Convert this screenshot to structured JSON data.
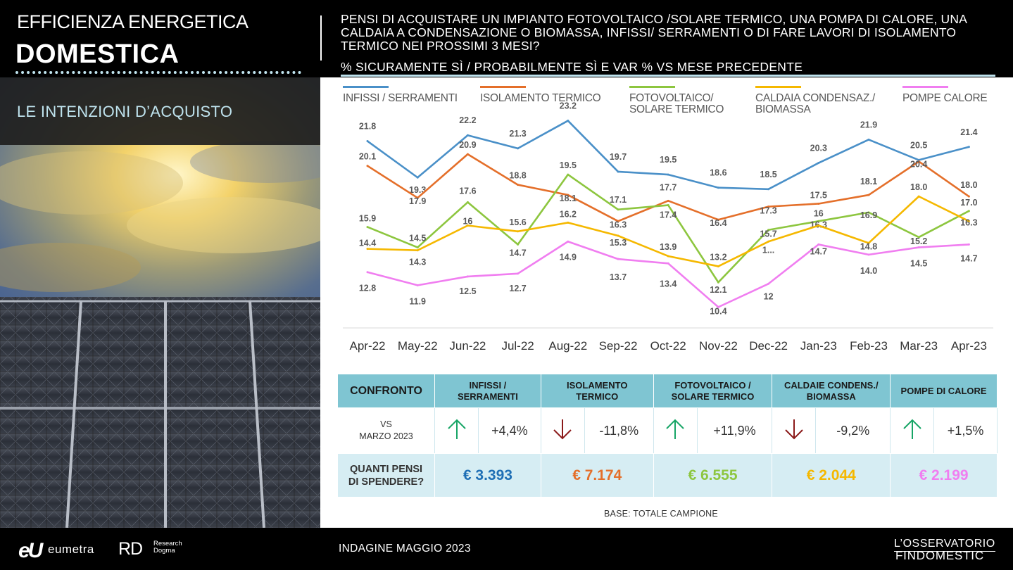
{
  "header": {
    "title_line1": "EFFICIENZA ENERGETICA",
    "title_line2": "DOMESTICA",
    "question": "PENSI DI ACQUISTARE  UN IMPIANTO  FOTOVOLTAICO  /SOLARE TERMICO,  UNA POMPA DI CALORE, UNA CALDAIA  A CONDENSAZIONE  O BIOMASSA,  INFISSI/  SERRAMENTI  O DI FARE LAVORI DI ISOLAMENTO  TERMICO  NEI PROSSIMI  3 MESI?",
    "subtitle": "% SICURAMENTE SÌ / PROBABILMENTE SÌ E VAR % VS MESE PRECEDENTE"
  },
  "section_label": "LE INTENZIONI D’ACQUISTO",
  "colors": {
    "infissi": "#4a90c8",
    "isolamento": "#e46f2a",
    "fotovoltaico": "#8dc63f",
    "caldaia": "#f5b800",
    "pompe": "#f07ef0",
    "arrow_up": "#17a566",
    "arrow_down": "#8b1a1a",
    "header_blue": "#7fc5d2"
  },
  "chart_data": {
    "type": "line",
    "categories": [
      "Apr-22",
      "May-22",
      "Jun-22",
      "Jul-22",
      "Aug-22",
      "Sep-22",
      "Oct-22",
      "Nov-22",
      "Dec-22",
      "Jan-23",
      "Feb-23",
      "Mar-23",
      "Apr-23"
    ],
    "series": [
      {
        "key": "infissi",
        "name": "INFISSI / SERRAMENTI",
        "values": [
          21.8,
          19.3,
          22.2,
          21.3,
          23.2,
          19.7,
          19.5,
          18.6,
          18.5,
          20.3,
          21.9,
          20.5,
          21.4
        ],
        "labels": [
          "21.8",
          "19.3",
          "22.2",
          "21.3",
          "23.2",
          "19.7",
          "19.5",
          "18.6",
          "18.5",
          "20.3",
          "21.9",
          "20.5",
          "21.4"
        ]
      },
      {
        "key": "isolamento",
        "name": "ISOLAMENTO TERMICO",
        "values": [
          20.1,
          17.9,
          20.9,
          18.8,
          18.1,
          16.3,
          17.7,
          16.4,
          17.3,
          17.5,
          18.1,
          20.4,
          18.0
        ],
        "labels": [
          "20.1",
          "17.9",
          "20.9",
          "18.8",
          "18.1",
          "16.3",
          "17.7",
          "16.4",
          "17.3",
          "17.5",
          "18.1",
          "20.4",
          "18.0"
        ]
      },
      {
        "key": "fotovoltaico",
        "name": "FOTOVOLTAICO/ SOLARE TERMICO",
        "values": [
          15.9,
          14.5,
          17.6,
          14.7,
          19.5,
          17.1,
          17.4,
          12.1,
          15.7,
          16.3,
          16.9,
          15.2,
          17.0
        ],
        "labels": [
          "15.9",
          "14.5",
          "17.6",
          "14.7",
          "19.5",
          "17.1",
          "17.4",
          "12.1",
          "15.7",
          "16.3",
          "16.9",
          "15.2",
          "17.0"
        ]
      },
      {
        "key": "caldaia",
        "name": "CALDAIA CONDENSAZ./ BIOMASSA",
        "values": [
          14.4,
          14.3,
          16.0,
          15.6,
          16.2,
          15.3,
          13.9,
          13.2,
          14.9,
          16.0,
          14.8,
          18.0,
          16.3
        ],
        "labels": [
          "14.4",
          "14.3",
          "16",
          "15.6",
          "16.2",
          "15.3",
          "13.9",
          "13.2",
          "1...",
          "16",
          "14.8",
          "18.0",
          "16.3"
        ]
      },
      {
        "key": "pompe",
        "name": "POMPE CALORE",
        "values": [
          12.8,
          11.9,
          12.5,
          12.7,
          14.9,
          13.7,
          13.4,
          10.4,
          12.0,
          14.7,
          14.0,
          14.5,
          14.7
        ],
        "labels": [
          "12.8",
          "11.9",
          "12.5",
          "12.7",
          "14.9",
          "13.7",
          "13.4",
          "10.4",
          "12",
          "14.7",
          "14.0",
          "14.5",
          "14.7"
        ]
      }
    ],
    "ylim": [
      9.5,
      24
    ],
    "grid": false,
    "legend_position": "top"
  },
  "table": {
    "header_first": "CONFRONTO",
    "columns": [
      {
        "key": "infissi",
        "label_line1": "INFISSI /",
        "label_line2": "SERRAMENTI",
        "direction": "up",
        "change": "+4,4%",
        "spend": "€ 3.393",
        "spend_color": "#1f6fb5"
      },
      {
        "key": "isolamento",
        "label_line1": "ISOLAMENTO",
        "label_line2": "TERMICO",
        "direction": "down",
        "change": "-11,8%",
        "spend": "€ 7.174",
        "spend_color": "#e46f2a"
      },
      {
        "key": "fotovoltaico",
        "label_line1": "FOTOVOLTAICO  /",
        "label_line2": "SOLARE TERMICO",
        "direction": "up",
        "change": "+11,9%",
        "spend": "€ 6.555",
        "spend_color": "#8dc63f"
      },
      {
        "key": "caldaia",
        "label_line1": "CALDAIE CONDENS./",
        "label_line2": "BIOMASSA",
        "direction": "down",
        "change": "-9,2%",
        "spend": "€ 2.044",
        "spend_color": "#f5b800"
      },
      {
        "key": "pompe",
        "label_line1": "POMPE  DI CALORE",
        "label_line2": "",
        "direction": "up",
        "change": "+1,5%",
        "spend": "€ 2.199",
        "spend_color": "#f07ef0"
      }
    ],
    "vs_line1": "VS",
    "vs_line2": "MARZO 2023",
    "spend_line1": "QUANTI PENSI",
    "spend_line2": "DI SPENDERE?"
  },
  "base_note": "BASE: TOTALE CAMPIONE",
  "footer": {
    "logo_eu": "eU",
    "logo_eumetra": "eumetra",
    "logo_rd": "RD",
    "logo_rd_sub1": "Research",
    "logo_rd_sub2": "Dogma",
    "survey": "INDAGINE  MAGGIO 2023",
    "brand_line1": "L’OSSERVATORIO",
    "brand_line2": "FINDOMESTIC"
  }
}
